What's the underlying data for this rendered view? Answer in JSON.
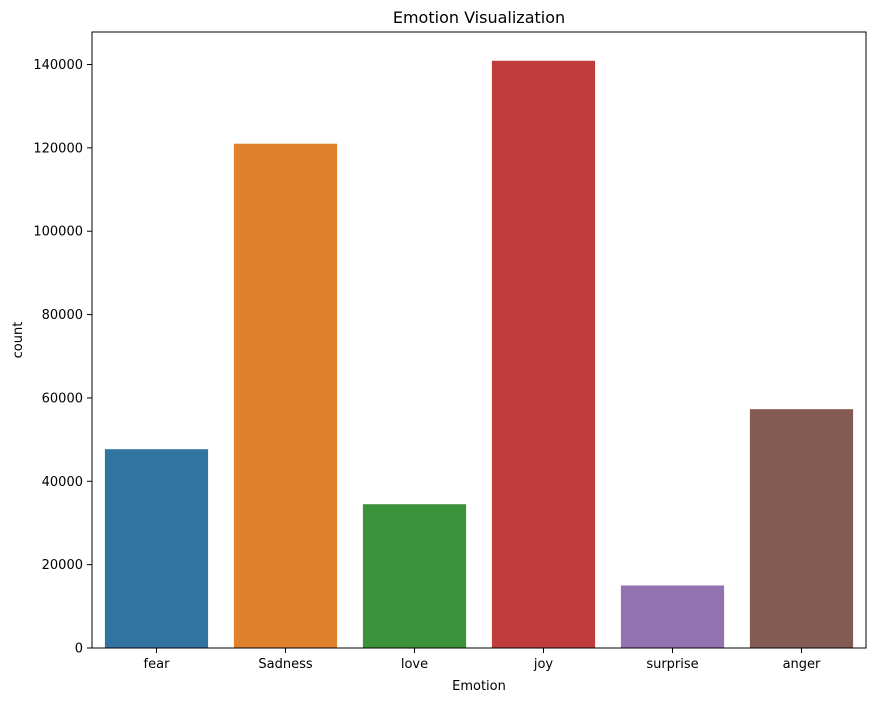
{
  "chart_data": {
    "type": "bar",
    "title": "Emotion Visualization",
    "xlabel": "Emotion",
    "ylabel": "count",
    "categories": [
      "fear",
      "Sadness",
      "love",
      "joy",
      "surprise",
      "anger"
    ],
    "values": [
      47700,
      121000,
      34500,
      140900,
      15000,
      57300
    ],
    "colors": [
      "#3274a1",
      "#e1812c",
      "#3a923a",
      "#c03d3e",
      "#9372b2",
      "#845b53"
    ],
    "ylim": [
      0,
      147800
    ],
    "yticks": [
      0,
      20000,
      40000,
      60000,
      80000,
      100000,
      120000,
      140000
    ],
    "grid": false,
    "legend": "none"
  }
}
